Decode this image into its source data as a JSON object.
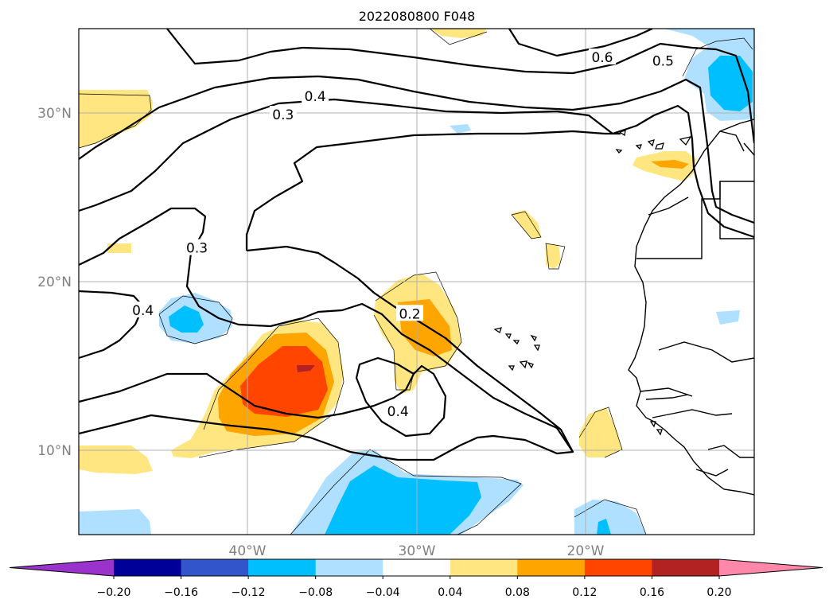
{
  "chart_data": {
    "type": "heatmap",
    "title": "2022080800 F048",
    "map_extent": {
      "lon": [
        -50,
        -10
      ],
      "lat": [
        5,
        35
      ]
    },
    "lat_ticks": [
      {
        "lat": 30,
        "label": "30°N"
      },
      {
        "lat": 20,
        "label": "20°N"
      },
      {
        "lat": 10,
        "label": "10°N"
      }
    ],
    "lon_ticks": [
      {
        "lon": -40,
        "label": "40°W"
      },
      {
        "lon": -30,
        "label": "30°W"
      },
      {
        "lon": -20,
        "label": "20°W"
      }
    ],
    "grid": true,
    "colorbar": {
      "levels": [
        -0.2,
        -0.16,
        -0.12,
        -0.08,
        -0.04,
        0.04,
        0.08,
        0.12,
        0.16,
        0.2
      ],
      "tick_labels": [
        "−0.20",
        "−0.16",
        "−0.12",
        "−0.08",
        "−0.04",
        "0.04",
        "0.08",
        "0.12",
        "0.16",
        "0.20"
      ],
      "colors": [
        "#9933cc",
        "#000099",
        "#3355cc",
        "#00bfff",
        "#b0e0ff",
        "#ffffff",
        "#ffe680",
        "#ffa500",
        "#ff4500",
        "#b22222",
        "#ff88aa"
      ],
      "extend": "both"
    },
    "contour_labels": [
      {
        "text": "0.6",
        "lon": -19.0,
        "lat": 33.3
      },
      {
        "text": "0.5",
        "lon": -15.4,
        "lat": 33.1
      },
      {
        "text": "0.4",
        "lon": -36.0,
        "lat": 31.0
      },
      {
        "text": "0.3",
        "lon": -37.9,
        "lat": 29.9
      },
      {
        "text": "0.3",
        "lon": -43.0,
        "lat": 22.0
      },
      {
        "text": "0.4",
        "lon": -46.2,
        "lat": 18.3
      },
      {
        "text": "0.2",
        "lon": -30.4,
        "lat": 18.1
      },
      {
        "text": "0.4",
        "lon": -31.1,
        "lat": 12.3
      }
    ]
  }
}
